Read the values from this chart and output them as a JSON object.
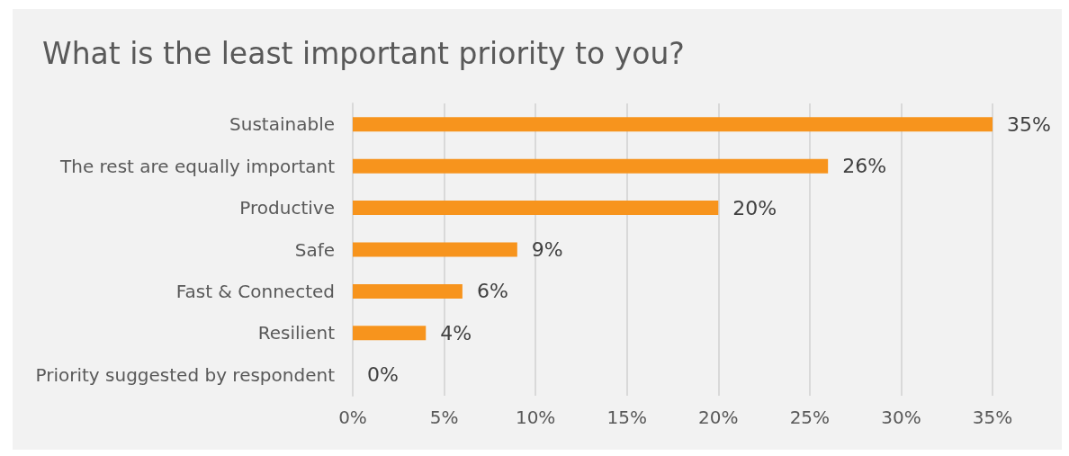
{
  "chart_data": {
    "type": "bar",
    "orientation": "horizontal",
    "title": "What is the least important priority to you?",
    "categories": [
      "Sustainable",
      "The rest are equally important",
      "Productive",
      "Safe",
      "Fast & Connected",
      "Resilient",
      "Priority suggested by respondent"
    ],
    "values": [
      35,
      26,
      20,
      9,
      6,
      4,
      0
    ],
    "value_labels": [
      "35%",
      "26%",
      "20%",
      "9%",
      "6%",
      "4%",
      "0%"
    ],
    "color": "#f7941d",
    "xlim": [
      0,
      35
    ],
    "xticks": [
      {
        "value": 0,
        "label": "0%"
      },
      {
        "value": 5,
        "label": "5%"
      },
      {
        "value": 10,
        "label": "10%"
      },
      {
        "value": 15,
        "label": "15%"
      },
      {
        "value": 20,
        "label": "20%"
      },
      {
        "value": 25,
        "label": "25%"
      },
      {
        "value": 30,
        "label": "30%"
      },
      {
        "value": 35,
        "label": "35%"
      }
    ],
    "grid": "x"
  }
}
